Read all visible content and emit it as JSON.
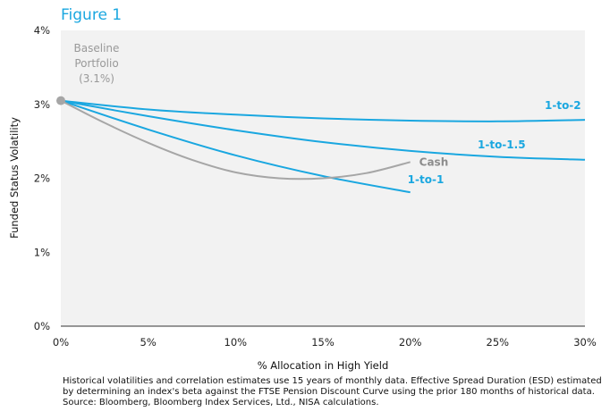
{
  "figure_title": "Figure 1",
  "footnote": {
    "line1": "Historical volatilities and correlation estimates use 15 years of monthly data. Effective Spread Duration (ESD) estimated",
    "line2": "by determining an index's beta against the FTSE Pension Discount Curve using the prior  180 months of historical data.",
    "line3": "Source: Bloomberg, Bloomberg Index Services, Ltd., NISA calculations."
  },
  "chart_data": {
    "type": "line",
    "title": "Figure 1",
    "xlabel": "% Allocation in High Yield",
    "ylabel": "Funded Status Volatility",
    "xlim": [
      0,
      30
    ],
    "ylim": [
      0,
      4
    ],
    "x_ticks": [
      "0%",
      "5%",
      "10%",
      "15%",
      "20%",
      "25%",
      "30%"
    ],
    "y_ticks": [
      "0%",
      "1%",
      "2%",
      "3%",
      "4%"
    ],
    "grid": false,
    "plot_background": "#f2f2f2",
    "baseline": {
      "label_lines": [
        "Baseline",
        "Portfolio",
        "(3.1%)"
      ],
      "x": 0,
      "y": 3.05,
      "color": "#a6a6a6"
    },
    "series": [
      {
        "name": "1-to-2",
        "color": "#1aa7e0",
        "x": [
          0,
          5,
          10,
          15,
          20,
          25,
          30
        ],
        "y": [
          3.05,
          2.93,
          2.86,
          2.81,
          2.78,
          2.77,
          2.79
        ]
      },
      {
        "name": "1-to-1.5",
        "color": "#1aa7e0",
        "x": [
          0,
          5,
          10,
          15,
          20,
          25,
          30
        ],
        "y": [
          3.05,
          2.84,
          2.65,
          2.49,
          2.37,
          2.29,
          2.25
        ]
      },
      {
        "name": "1-to-1",
        "color": "#1aa7e0",
        "x": [
          0,
          5,
          10,
          15,
          20
        ],
        "y": [
          3.05,
          2.66,
          2.31,
          2.03,
          1.81
        ]
      },
      {
        "name": "Cash",
        "color": "#a6a6a6",
        "x": [
          0,
          2.5,
          5,
          7.5,
          10,
          12.5,
          15,
          17.5,
          20
        ],
        "y": [
          3.05,
          2.75,
          2.48,
          2.25,
          2.08,
          2.0,
          2.0,
          2.07,
          2.22
        ]
      }
    ]
  }
}
